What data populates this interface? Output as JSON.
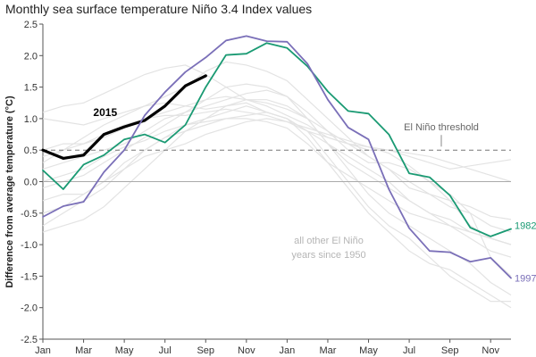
{
  "chart_data": {
    "type": "line",
    "title": "Monthly sea surface temperature Niño 3.4 Index values",
    "xlabel": "",
    "ylabel": "Difference from average temperature (°C)",
    "ylim": [
      -2.5,
      2.5
    ],
    "yticks": [
      "2.5",
      "2.0",
      "1.5",
      "1.0",
      "0.5",
      "0.0",
      "-0.5",
      "-1.0",
      "-1.5",
      "-2.0",
      "-2.5"
    ],
    "xticks": [
      "Jan",
      "Mar",
      "May",
      "Jul",
      "Sep",
      "Nov",
      "Jan",
      "Mar",
      "May",
      "Jul",
      "Sep",
      "Nov"
    ],
    "grid": false,
    "reference_lines": [
      {
        "label": "El Niño threshold",
        "y": 0.5,
        "style": "dashed"
      },
      {
        "label": "",
        "y": 0.0,
        "style": "solid"
      }
    ],
    "annotation": [
      "all other El Niño",
      "years since 1950"
    ],
    "series": [
      {
        "name": "2015",
        "color": "#000000",
        "emphasis": true,
        "values": [
          0.5,
          0.37,
          0.42,
          0.75,
          0.87,
          0.97,
          1.2,
          1.52,
          1.68
        ]
      },
      {
        "name": "1982",
        "color": "#1a9a73",
        "emphasis": false,
        "values": [
          0.18,
          -0.12,
          0.27,
          0.42,
          0.67,
          0.75,
          0.62,
          0.9,
          1.5,
          2.01,
          2.03,
          2.2,
          2.12,
          1.83,
          1.43,
          1.12,
          1.08,
          0.75,
          0.13,
          0.07,
          -0.22,
          -0.73,
          -0.87,
          -0.75
        ]
      },
      {
        "name": "1997",
        "color": "#7a6fb8",
        "emphasis": false,
        "values": [
          -0.56,
          -0.39,
          -0.32,
          0.15,
          0.5,
          1.05,
          1.42,
          1.74,
          1.97,
          2.24,
          2.31,
          2.23,
          2.22,
          1.87,
          1.3,
          0.86,
          0.67,
          -0.12,
          -0.74,
          -1.1,
          -1.12,
          -1.27,
          -1.21,
          -1.53
        ]
      }
    ],
    "background_series_color": "#e3e3e3",
    "background_series": [
      [
        1.0,
        0.95,
        0.9,
        1.0,
        1.1,
        1.2,
        1.25,
        1.2,
        1.15,
        1.2,
        1.25,
        1.1,
        1.0,
        0.8,
        0.6,
        0.4,
        0.2,
        0.0,
        -0.3,
        -0.5,
        -0.6,
        -0.8,
        -0.9,
        -1.0
      ],
      [
        1.1,
        1.2,
        1.25,
        1.4,
        1.55,
        1.7,
        1.8,
        1.85,
        1.7,
        1.5,
        1.3,
        1.2,
        1.05,
        0.9,
        0.7,
        0.6,
        0.55,
        0.45,
        0.25,
        0.0,
        -0.2,
        -0.5,
        -1.2,
        -1.5
      ],
      [
        0.3,
        0.5,
        0.7,
        0.9,
        1.05,
        1.2,
        1.35,
        1.5,
        1.75,
        1.9,
        1.85,
        1.75,
        1.6,
        1.3,
        1.0,
        0.7,
        0.4,
        0.2,
        -0.1,
        -0.2,
        -0.3,
        -0.4,
        -0.55,
        -0.6
      ],
      [
        -0.1,
        0.0,
        0.1,
        0.3,
        0.5,
        0.7,
        0.9,
        1.1,
        1.3,
        1.5,
        1.55,
        1.5,
        1.35,
        1.1,
        0.8,
        0.5,
        0.3,
        0.3,
        0.2,
        0.0,
        -0.3,
        -0.7,
        -0.9,
        -1.0
      ],
      [
        -0.7,
        -0.5,
        -0.3,
        -0.1,
        0.2,
        0.5,
        0.7,
        0.8,
        0.9,
        1.0,
        1.05,
        1.1,
        1.0,
        0.7,
        0.3,
        -0.1,
        -0.5,
        -0.8,
        -1.1,
        -1.3,
        -1.4,
        -1.6,
        -1.8,
        -2.0
      ],
      [
        -0.3,
        -0.2,
        -0.2,
        0.0,
        0.3,
        0.5,
        0.7,
        0.9,
        1.0,
        1.2,
        1.3,
        1.3,
        1.2,
        1.0,
        0.6,
        0.2,
        -0.2,
        -0.5,
        -0.7,
        -0.9,
        -1.1,
        -1.3,
        -1.6,
        -1.8
      ],
      [
        -0.8,
        -0.7,
        -0.6,
        -0.4,
        -0.1,
        0.2,
        0.5,
        0.8,
        1.0,
        1.1,
        1.2,
        1.1,
        1.0,
        0.8,
        0.4,
        0.0,
        -0.4,
        -0.7,
        -0.9,
        -1.2,
        -1.5,
        -1.7,
        -1.9,
        -1.9
      ],
      [
        0.5,
        0.6,
        0.6,
        0.7,
        0.85,
        1.0,
        1.05,
        1.05,
        1.1,
        1.15,
        1.1,
        1.05,
        0.95,
        0.85,
        0.75,
        0.65,
        0.55,
        0.5,
        0.45,
        0.4,
        0.3,
        0.2,
        0.1,
        0.0
      ],
      [
        0.2,
        0.3,
        0.4,
        0.5,
        0.6,
        0.8,
        1.0,
        1.1,
        1.2,
        1.3,
        1.4,
        1.45,
        1.35,
        1.0,
        0.6,
        0.3,
        0.1,
        -0.1,
        -0.3,
        -0.5,
        -0.7,
        -0.9,
        -1.1,
        -1.2
      ],
      [
        -0.5,
        -0.4,
        -0.2,
        0.0,
        0.2,
        0.4,
        0.5,
        0.6,
        0.75,
        0.85,
        0.95,
        1.0,
        0.95,
        0.8,
        0.7,
        0.6,
        0.4,
        0.2,
        0.0,
        -0.2,
        -0.4,
        -0.5,
        -0.7,
        -0.8
      ],
      [
        0.0,
        0.1,
        0.2,
        0.4,
        0.55,
        0.65,
        0.8,
        0.9,
        0.95,
        1.0,
        1.0,
        0.95,
        0.85,
        0.6,
        0.3,
        0.1,
        -0.1,
        -0.3,
        -0.5,
        -0.6,
        -0.7,
        -0.8,
        -0.9,
        -1.0
      ],
      [
        0.4,
        0.5,
        0.6,
        0.75,
        0.9,
        1.0,
        1.1,
        1.2,
        1.3,
        1.35,
        1.3,
        1.25,
        1.15,
        1.0,
        0.8,
        0.6,
        0.5,
        0.5,
        0.4,
        0.3,
        0.2,
        0.25,
        0.3,
        0.35
      ]
    ]
  }
}
